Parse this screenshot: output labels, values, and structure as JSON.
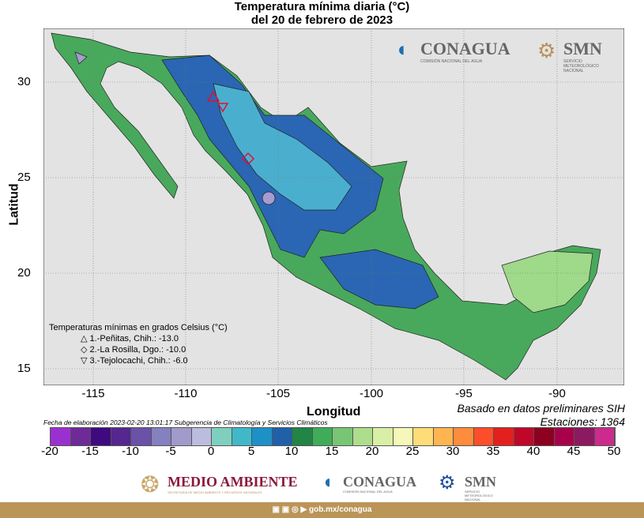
{
  "title": {
    "line1": "Temperatura mínima diaria (°C)",
    "line2": "del 20 de febrero de 2023"
  },
  "axes": {
    "ylabel": "Latitud",
    "xlabel": "Longitud",
    "yticks": [
      "30",
      "25",
      "20",
      "15"
    ],
    "xticks": [
      "-115",
      "-110",
      "-105",
      "-100",
      "-95",
      "-90"
    ]
  },
  "legend": {
    "title": "Temperaturas mínimas en grados Celsius (°C)",
    "items": [
      {
        "symbol": "△",
        "text": "1.-Peñitas, Chih.: -13.0"
      },
      {
        "symbol": "◇",
        "text": "2.-La Rosilla, Dgo.: -10.0"
      },
      {
        "symbol": "▽",
        "text": "3.-Tejolocachi, Chih.: -6.0"
      }
    ]
  },
  "notes": {
    "source": "Basado en datos preliminares SIH",
    "stations": "Estaciones:  1364",
    "footer_left": "Fecha de elaboración 2023-02-20 13:01:17 Subgerencia de Climatología y Servicios Climáticos"
  },
  "colorbar": {
    "labels": [
      "-20",
      "-15",
      "-10",
      "-5",
      "0",
      "5",
      "10",
      "15",
      "20",
      "25",
      "30",
      "35",
      "40",
      "45",
      "50"
    ],
    "colors": [
      "#9b30d0",
      "#6e2a96",
      "#3f0a80",
      "#55278f",
      "#6a52a8",
      "#8580bf",
      "#a09bcb",
      "#bcbcdf",
      "#7fcfbf",
      "#40b8c8",
      "#1e90c8",
      "#2060a8",
      "#208545",
      "#3fac58",
      "#78c576",
      "#aedd8e",
      "#d8efa5",
      "#f5f8b8",
      "#fedc78",
      "#feb550",
      "#fd8c3c",
      "#fc4e2a",
      "#e3201e",
      "#c0072a",
      "#8c0020",
      "#a8004a",
      "#8c1a60",
      "#cc2a8c"
    ]
  },
  "logos": {
    "conagua": "CONAGUA",
    "conagua_sub": "COMISIÓN NACIONAL DEL AGUA",
    "smn": "SMN",
    "smn_sub": "SERVICIO METEOROLÓGICO NACIONAL",
    "medio": "MEDIO AMBIENTE",
    "medio_sub": "SECRETARÍA DE MEDIO AMBIENTE Y RECURSOS NATURALES"
  },
  "footer": {
    "url": "gob.mx/conagua"
  }
}
